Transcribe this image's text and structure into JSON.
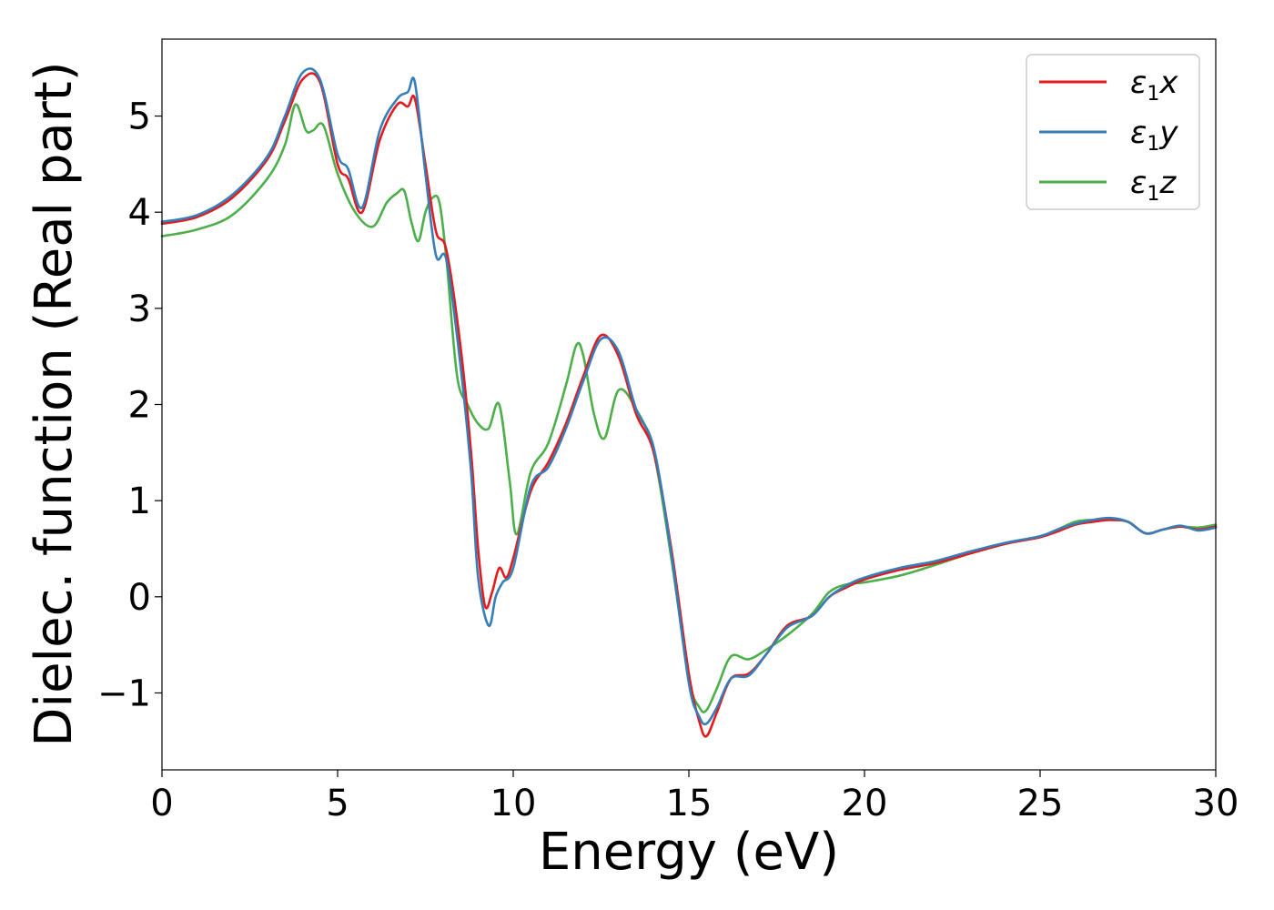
{
  "chart_data": {
    "type": "line",
    "xlabel": "Energy (eV)",
    "ylabel": "Dielec. function (Real part)",
    "xlim": [
      0,
      30
    ],
    "ylim": [
      -1.8,
      5.8
    ],
    "xticks": [
      0,
      5,
      10,
      15,
      20,
      25,
      30
    ],
    "xtick_labels": [
      "0",
      "5",
      "10",
      "15",
      "20",
      "25",
      "30"
    ],
    "yticks": [
      -1,
      0,
      1,
      2,
      3,
      4,
      5
    ],
    "ytick_labels": [
      "−1",
      "0",
      "1",
      "2",
      "3",
      "4",
      "5"
    ],
    "grid": false,
    "legend_position": "top-right",
    "series": [
      {
        "name": "ε",
        "name_sub": "1",
        "name_suffix": "x",
        "color": "#e41a1c",
        "x": [
          0,
          1,
          2,
          3,
          3.5,
          4,
          4.5,
          5,
          5.3,
          5.7,
          6.2,
          6.7,
          7.0,
          7.2,
          7.5,
          7.8,
          8.1,
          8.5,
          8.8,
          9.0,
          9.2,
          9.4,
          9.6,
          9.8,
          10.0,
          10.5,
          11.0,
          11.5,
          12.0,
          12.5,
          13.0,
          13.5,
          14.0,
          14.5,
          15.0,
          15.3,
          15.5,
          15.8,
          16.2,
          16.7,
          17.2,
          17.8,
          18.5,
          19.0,
          19.5,
          20,
          21,
          22,
          23,
          24,
          25,
          25.5,
          26,
          26.5,
          27,
          27.5,
          28,
          28.5,
          29,
          29.5,
          30
        ],
        "y": [
          3.88,
          3.95,
          4.15,
          4.55,
          4.95,
          5.38,
          5.35,
          4.5,
          4.35,
          4.0,
          4.75,
          5.12,
          5.1,
          5.18,
          4.5,
          3.8,
          3.6,
          2.6,
          1.5,
          0.5,
          -0.1,
          0.05,
          0.3,
          0.2,
          0.4,
          1.1,
          1.4,
          1.8,
          2.3,
          2.72,
          2.5,
          1.9,
          1.5,
          0.5,
          -0.8,
          -1.3,
          -1.45,
          -1.2,
          -0.85,
          -0.8,
          -0.6,
          -0.3,
          -0.2,
          0.0,
          0.1,
          0.18,
          0.28,
          0.35,
          0.45,
          0.55,
          0.62,
          0.68,
          0.75,
          0.78,
          0.8,
          0.78,
          0.66,
          0.7,
          0.73,
          0.7,
          0.73
        ]
      },
      {
        "name": "ε",
        "name_sub": "1",
        "name_suffix": "y",
        "color": "#377eb8",
        "x": [
          0,
          1,
          2,
          3,
          3.5,
          4,
          4.5,
          5,
          5.3,
          5.7,
          6.2,
          6.7,
          7.0,
          7.2,
          7.5,
          7.8,
          8.1,
          8.5,
          8.8,
          9.0,
          9.3,
          9.5,
          9.7,
          10.0,
          10.5,
          11.0,
          11.5,
          12.0,
          12.5,
          13.0,
          13.5,
          14.0,
          14.5,
          15.0,
          15.3,
          15.5,
          15.8,
          16.2,
          16.7,
          17.2,
          17.8,
          18.5,
          19.0,
          19.5,
          20,
          21,
          22,
          23,
          24,
          25,
          25.5,
          26,
          26.5,
          27,
          27.5,
          28,
          28.5,
          29,
          29.5,
          30
        ],
        "y": [
          3.9,
          3.97,
          4.18,
          4.58,
          5.0,
          5.45,
          5.38,
          4.6,
          4.45,
          4.05,
          4.85,
          5.18,
          5.25,
          5.35,
          4.4,
          3.55,
          3.5,
          2.4,
          1.3,
          0.2,
          -0.3,
          0.0,
          0.15,
          0.3,
          1.15,
          1.35,
          1.75,
          2.25,
          2.68,
          2.55,
          1.95,
          1.55,
          0.45,
          -0.9,
          -1.25,
          -1.32,
          -1.15,
          -0.85,
          -0.82,
          -0.6,
          -0.32,
          -0.2,
          0.0,
          0.12,
          0.2,
          0.3,
          0.37,
          0.47,
          0.56,
          0.63,
          0.7,
          0.76,
          0.8,
          0.82,
          0.78,
          0.66,
          0.7,
          0.74,
          0.69,
          0.72
        ]
      },
      {
        "name": "ε",
        "name_sub": "1",
        "name_suffix": "z",
        "color": "#4daf4a",
        "x": [
          0,
          1,
          2,
          3,
          3.5,
          3.8,
          4.1,
          4.3,
          4.6,
          5.0,
          5.5,
          6.0,
          6.4,
          6.7,
          6.9,
          7.1,
          7.3,
          7.5,
          7.7,
          7.9,
          8.1,
          8.4,
          8.7,
          9.0,
          9.3,
          9.6,
          9.9,
          10.1,
          10.5,
          11.0,
          11.5,
          11.8,
          12.0,
          12.3,
          12.6,
          13.0,
          13.5,
          14.0,
          14.5,
          15.0,
          15.3,
          15.5,
          15.8,
          16.2,
          16.7,
          17.2,
          17.8,
          18.5,
          19.0,
          19.5,
          20,
          21,
          22,
          23,
          24,
          25,
          25.5,
          26,
          26.5,
          27,
          27.5,
          28,
          28.5,
          29,
          29.5,
          30
        ],
        "y": [
          3.75,
          3.82,
          3.97,
          4.35,
          4.7,
          5.12,
          4.85,
          4.85,
          4.9,
          4.4,
          4.0,
          3.85,
          4.1,
          4.2,
          4.22,
          3.9,
          3.7,
          4.0,
          4.15,
          4.1,
          3.5,
          2.3,
          2.0,
          1.8,
          1.75,
          2.0,
          1.2,
          0.65,
          1.3,
          1.6,
          2.2,
          2.62,
          2.5,
          1.9,
          1.65,
          2.15,
          1.95,
          1.5,
          0.4,
          -0.85,
          -1.15,
          -1.18,
          -0.95,
          -0.62,
          -0.65,
          -0.55,
          -0.4,
          -0.18,
          0.05,
          0.13,
          0.15,
          0.22,
          0.33,
          0.45,
          0.55,
          0.63,
          0.7,
          0.78,
          0.8,
          0.8,
          0.78,
          0.66,
          0.7,
          0.73,
          0.72,
          0.75
        ]
      }
    ]
  }
}
